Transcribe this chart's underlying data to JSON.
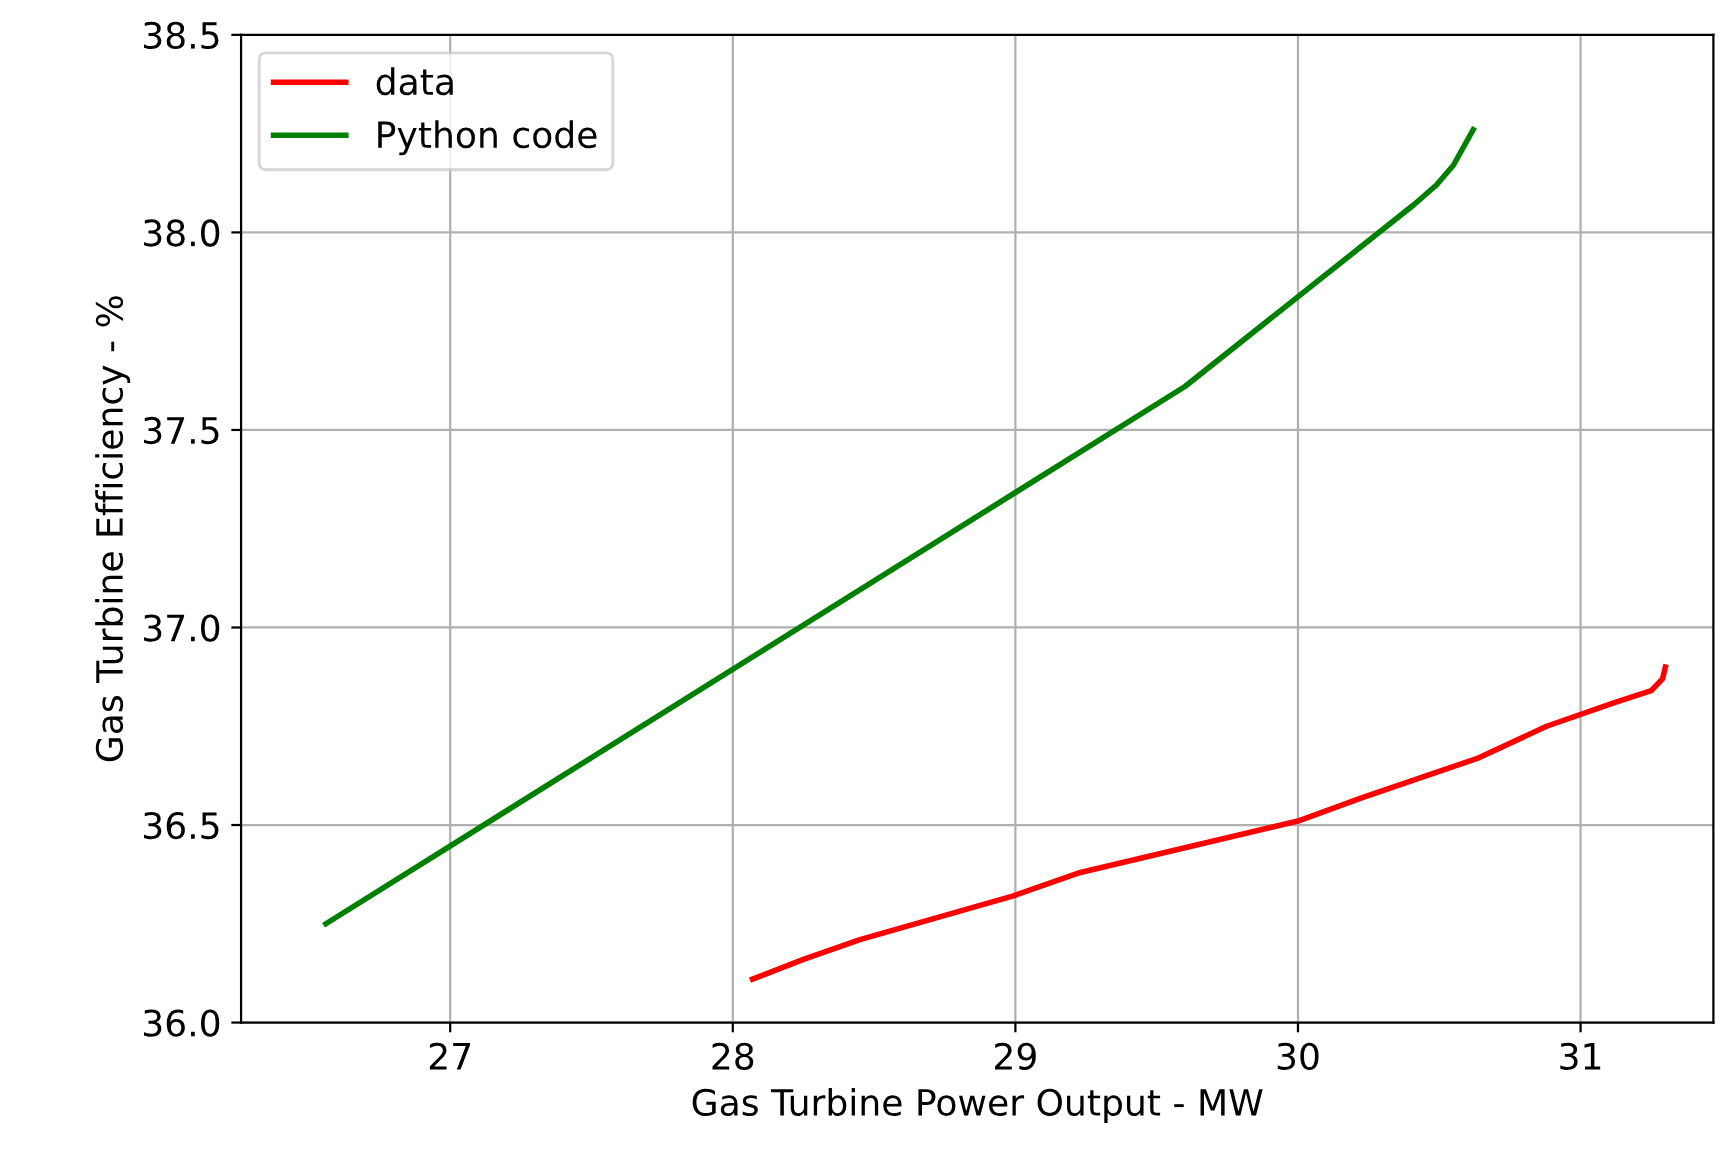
{
  "chart_data": {
    "type": "line",
    "xlabel": "Gas Turbine Power Output - MW",
    "ylabel": "Gas Turbine Efficiency - %",
    "xlim": [
      26.26,
      31.47
    ],
    "ylim": [
      36.0,
      38.5
    ],
    "xticks": [
      27,
      28,
      29,
      30,
      31
    ],
    "yticks": [
      {
        "value": 36.0,
        "label": "36.0"
      },
      {
        "value": 36.5,
        "label": "36.5"
      },
      {
        "value": 37.0,
        "label": "37.0"
      },
      {
        "value": 37.5,
        "label": "37.5"
      },
      {
        "value": 38.0,
        "label": "38.0"
      },
      {
        "value": 38.5,
        "label": "38.5"
      }
    ],
    "grid": true,
    "legend": "top left",
    "marker": "none",
    "line_style": "solid",
    "series": [
      {
        "name": "data",
        "color": "#ff0000",
        "x": [
          28.07,
          28.25,
          28.45,
          28.99,
          29.23,
          30.0,
          30.23,
          30.64,
          30.88,
          31.12,
          31.25,
          31.29,
          31.3
        ],
        "values": [
          36.11,
          36.16,
          36.21,
          36.32,
          36.38,
          36.51,
          36.57,
          36.67,
          36.75,
          36.81,
          36.84,
          36.87,
          36.9
        ]
      },
      {
        "name": "Python code",
        "color": "#008000",
        "x": [
          26.56,
          29.6,
          30.41,
          30.49,
          30.55,
          30.62
        ],
        "values": [
          36.25,
          37.61,
          38.07,
          38.12,
          38.17,
          38.26
        ]
      }
    ]
  }
}
